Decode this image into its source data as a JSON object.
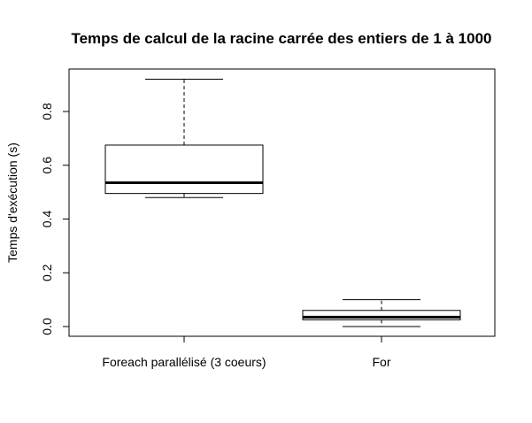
{
  "chart_data": {
    "type": "boxplot",
    "title": "Temps de calcul de la racine carrée des entiers de 1 à 1000",
    "xlabel": "",
    "ylabel": "Temps d'exécution (s)",
    "ylim": [
      -0.04,
      0.96
    ],
    "yticks": [
      0.0,
      0.2,
      0.4,
      0.6,
      0.8
    ],
    "ytick_labels": [
      "0.0",
      "0.2",
      "0.4",
      "0.6",
      "0.8"
    ],
    "categories": [
      "Foreach parallélisé (3 coeurs)",
      "For"
    ],
    "boxes": [
      {
        "whisker_low": 0.48,
        "q1": 0.495,
        "median": 0.535,
        "q3": 0.675,
        "whisker_high": 0.92
      },
      {
        "whisker_low": 0.0,
        "q1": 0.025,
        "median": 0.035,
        "q3": 0.06,
        "whisker_high": 0.1
      }
    ],
    "grid": false,
    "legend": "none",
    "colors": {
      "box_fill": "#ffffff",
      "stroke": "#000000"
    }
  }
}
